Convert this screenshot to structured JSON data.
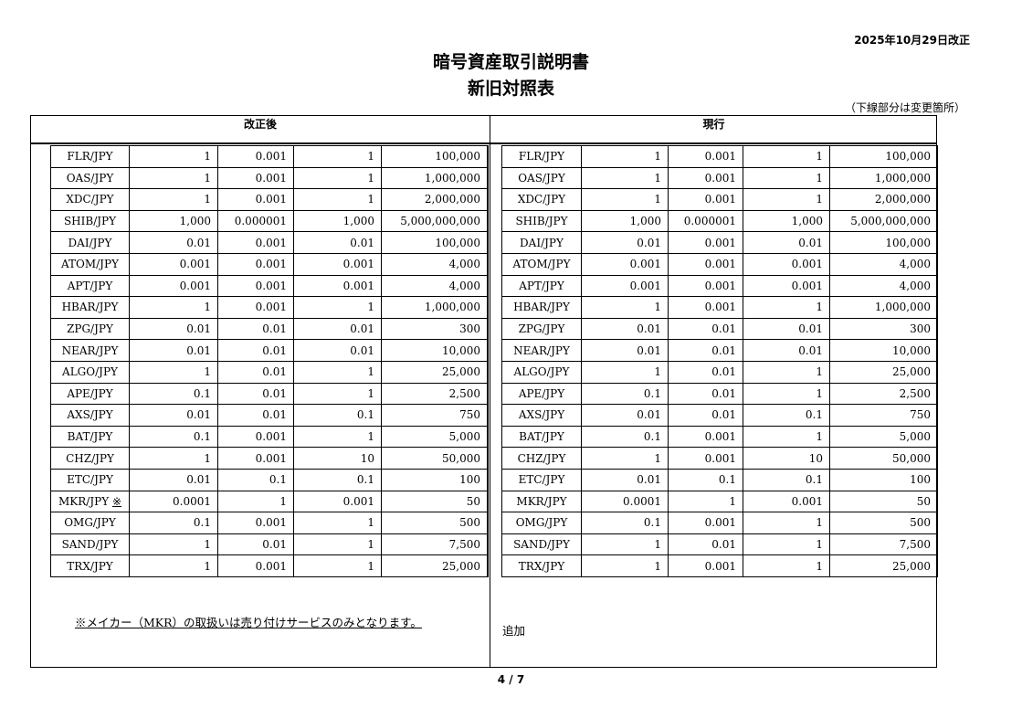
{
  "date": "2025年10月29日改正",
  "title": "暗号資産取引説明書",
  "subtitle": "新旧対照表",
  "note_top": "（下線部分は変更箇所）",
  "after": {
    "header": "改正後",
    "rows": [
      [
        "FLR/JPY",
        "1",
        "0.001",
        "1",
        "100,000"
      ],
      [
        "OAS/JPY",
        "1",
        "0.001",
        "1",
        "1,000,000"
      ],
      [
        "XDC/JPY",
        "1",
        "0.001",
        "1",
        "2,000,000"
      ],
      [
        "SHIB/JPY",
        "1,000",
        "0.000001",
        "1,000",
        "5,000,000,000"
      ],
      [
        "DAI/JPY",
        "0.01",
        "0.001",
        "0.01",
        "100,000"
      ],
      [
        "ATOM/JPY",
        "0.001",
        "0.001",
        "0.001",
        "4,000"
      ],
      [
        "APT/JPY",
        "0.001",
        "0.001",
        "0.001",
        "4,000"
      ],
      [
        "HBAR/JPY",
        "1",
        "0.001",
        "1",
        "1,000,000"
      ],
      [
        "ZPG/JPY",
        "0.01",
        "0.01",
        "0.01",
        "300"
      ],
      [
        "NEAR/JPY",
        "0.01",
        "0.01",
        "0.01",
        "10,000"
      ],
      [
        "ALGO/JPY",
        "1",
        "0.01",
        "1",
        "25,000"
      ],
      [
        "APE/JPY",
        "0.1",
        "0.01",
        "1",
        "2,500"
      ],
      [
        "AXS/JPY",
        "0.01",
        "0.01",
        "0.1",
        "750"
      ],
      [
        "BAT/JPY",
        "0.1",
        "0.001",
        "1",
        "5,000"
      ],
      [
        "CHZ/JPY",
        "1",
        "0.001",
        "10",
        "50,000"
      ],
      [
        "ETC/JPY",
        "0.01",
        "0.1",
        "0.1",
        "100"
      ],
      [
        "MKR/JPY",
        "0.0001",
        "1",
        "0.001",
        "50"
      ],
      [
        "OMG/JPY",
        "0.1",
        "0.001",
        "1",
        "500"
      ],
      [
        "SAND/JPY",
        "1",
        "0.01",
        "1",
        "7,500"
      ],
      [
        "TRX/JPY",
        "1",
        "0.001",
        "1",
        "25,000"
      ]
    ],
    "mkr_mark": "※",
    "footnote": "※メイカー（MKR）の取扱いは売り付けサービスのみとなります。"
  },
  "current": {
    "header": "現行",
    "rows": [
      [
        "FLR/JPY",
        "1",
        "0.001",
        "1",
        "100,000"
      ],
      [
        "OAS/JPY",
        "1",
        "0.001",
        "1",
        "1,000,000"
      ],
      [
        "XDC/JPY",
        "1",
        "0.001",
        "1",
        "2,000,000"
      ],
      [
        "SHIB/JPY",
        "1,000",
        "0.000001",
        "1,000",
        "5,000,000,000"
      ],
      [
        "DAI/JPY",
        "0.01",
        "0.001",
        "0.01",
        "100,000"
      ],
      [
        "ATOM/JPY",
        "0.001",
        "0.001",
        "0.001",
        "4,000"
      ],
      [
        "APT/JPY",
        "0.001",
        "0.001",
        "0.001",
        "4,000"
      ],
      [
        "HBAR/JPY",
        "1",
        "0.001",
        "1",
        "1,000,000"
      ],
      [
        "ZPG/JPY",
        "0.01",
        "0.01",
        "0.01",
        "300"
      ],
      [
        "NEAR/JPY",
        "0.01",
        "0.01",
        "0.01",
        "10,000"
      ],
      [
        "ALGO/JPY",
        "1",
        "0.01",
        "1",
        "25,000"
      ],
      [
        "APE/JPY",
        "0.1",
        "0.01",
        "1",
        "2,500"
      ],
      [
        "AXS/JPY",
        "0.01",
        "0.01",
        "0.1",
        "750"
      ],
      [
        "BAT/JPY",
        "0.1",
        "0.001",
        "1",
        "5,000"
      ],
      [
        "CHZ/JPY",
        "1",
        "0.001",
        "10",
        "50,000"
      ],
      [
        "ETC/JPY",
        "0.01",
        "0.1",
        "0.1",
        "100"
      ],
      [
        "MKR/JPY",
        "0.0001",
        "1",
        "0.001",
        "50"
      ],
      [
        "OMG/JPY",
        "0.1",
        "0.001",
        "1",
        "500"
      ],
      [
        "SAND/JPY",
        "1",
        "0.01",
        "1",
        "7,500"
      ],
      [
        "TRX/JPY",
        "1",
        "0.001",
        "1",
        "25,000"
      ]
    ],
    "added_note": "追加"
  },
  "page": "4 / 7"
}
